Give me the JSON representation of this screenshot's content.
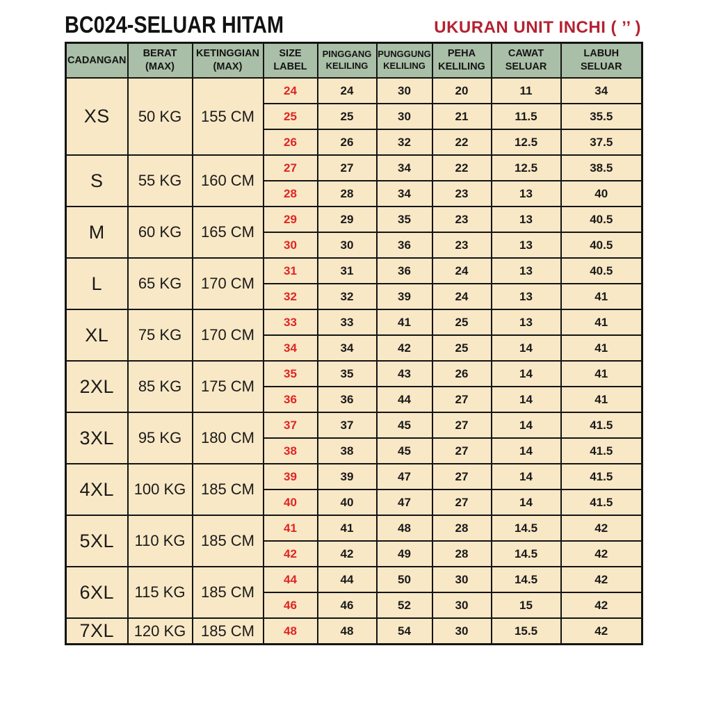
{
  "page": {
    "title": "BC024-SELUAR HITAM",
    "unit_label": "UKURAN UNIT INCHI ( ’’ )"
  },
  "colors": {
    "header_bg": "#a9bfa7",
    "cell_bg": "#f9e8c6",
    "title_color": "#121212",
    "unit_label_color": "#b52231",
    "size_label_color": "#e02424",
    "border_color": "#141414"
  },
  "table": {
    "headers": [
      {
        "lines": [
          "CADANGAN"
        ]
      },
      {
        "lines": [
          "BERAT",
          "(MAX)"
        ]
      },
      {
        "lines": [
          "KETINGGIAN",
          "(MAX)"
        ]
      },
      {
        "lines": [
          "SIZE",
          "LABEL"
        ]
      },
      {
        "lines": [
          "PINGGANG",
          "KELILING"
        ]
      },
      {
        "lines": [
          "PUNGGUNG",
          "KELILING"
        ]
      },
      {
        "lines": [
          "PEHA",
          "KELILING"
        ]
      },
      {
        "lines": [
          "CAWAT",
          "SELUAR"
        ]
      },
      {
        "lines": [
          "LABUH",
          "SELUAR"
        ]
      }
    ],
    "groups": [
      {
        "size": "XS",
        "weight": "50 KG",
        "height": "155 CM",
        "rows": [
          {
            "label": "24",
            "pinggang": "24",
            "punggung": "30",
            "peha": "20",
            "cawat": "11",
            "labuh": "34"
          },
          {
            "label": "25",
            "pinggang": "25",
            "punggung": "30",
            "peha": "21",
            "cawat": "11.5",
            "labuh": "35.5"
          },
          {
            "label": "26",
            "pinggang": "26",
            "punggung": "32",
            "peha": "22",
            "cawat": "12.5",
            "labuh": "37.5"
          }
        ]
      },
      {
        "size": "S",
        "weight": "55 KG",
        "height": "160 CM",
        "rows": [
          {
            "label": "27",
            "pinggang": "27",
            "punggung": "34",
            "peha": "22",
            "cawat": "12.5",
            "labuh": "38.5"
          },
          {
            "label": "28",
            "pinggang": "28",
            "punggung": "34",
            "peha": "23",
            "cawat": "13",
            "labuh": "40"
          }
        ]
      },
      {
        "size": "M",
        "weight": "60 KG",
        "height": "165 CM",
        "rows": [
          {
            "label": "29",
            "pinggang": "29",
            "punggung": "35",
            "peha": "23",
            "cawat": "13",
            "labuh": "40.5"
          },
          {
            "label": "30",
            "pinggang": "30",
            "punggung": "36",
            "peha": "23",
            "cawat": "13",
            "labuh": "40.5"
          }
        ]
      },
      {
        "size": "L",
        "weight": "65 KG",
        "height": "170 CM",
        "rows": [
          {
            "label": "31",
            "pinggang": "31",
            "punggung": "36",
            "peha": "24",
            "cawat": "13",
            "labuh": "40.5"
          },
          {
            "label": "32",
            "pinggang": "32",
            "punggung": "39",
            "peha": "24",
            "cawat": "13",
            "labuh": "41"
          }
        ]
      },
      {
        "size": "XL",
        "weight": "75 KG",
        "height": "170 CM",
        "rows": [
          {
            "label": "33",
            "pinggang": "33",
            "punggung": "41",
            "peha": "25",
            "cawat": "13",
            "labuh": "41"
          },
          {
            "label": "34",
            "pinggang": "34",
            "punggung": "42",
            "peha": "25",
            "cawat": "14",
            "labuh": "41"
          }
        ]
      },
      {
        "size": "2XL",
        "weight": "85 KG",
        "height": "175 CM",
        "rows": [
          {
            "label": "35",
            "pinggang": "35",
            "punggung": "43",
            "peha": "26",
            "cawat": "14",
            "labuh": "41"
          },
          {
            "label": "36",
            "pinggang": "36",
            "punggung": "44",
            "peha": "27",
            "cawat": "14",
            "labuh": "41"
          }
        ]
      },
      {
        "size": "3XL",
        "weight": "95 KG",
        "height": "180 CM",
        "rows": [
          {
            "label": "37",
            "pinggang": "37",
            "punggung": "45",
            "peha": "27",
            "cawat": "14",
            "labuh": "41.5"
          },
          {
            "label": "38",
            "pinggang": "38",
            "punggung": "45",
            "peha": "27",
            "cawat": "14",
            "labuh": "41.5"
          }
        ]
      },
      {
        "size": "4XL",
        "weight": "100 KG",
        "height": "185 CM",
        "rows": [
          {
            "label": "39",
            "pinggang": "39",
            "punggung": "47",
            "peha": "27",
            "cawat": "14",
            "labuh": "41.5"
          },
          {
            "label": "40",
            "pinggang": "40",
            "punggung": "47",
            "peha": "27",
            "cawat": "14",
            "labuh": "41.5"
          }
        ]
      },
      {
        "size": "5XL",
        "weight": "110 KG",
        "height": "185 CM",
        "rows": [
          {
            "label": "41",
            "pinggang": "41",
            "punggung": "48",
            "peha": "28",
            "cawat": "14.5",
            "labuh": "42"
          },
          {
            "label": "42",
            "pinggang": "42",
            "punggung": "49",
            "peha": "28",
            "cawat": "14.5",
            "labuh": "42"
          }
        ]
      },
      {
        "size": "6XL",
        "weight": "115 KG",
        "height": "185 CM",
        "rows": [
          {
            "label": "44",
            "pinggang": "44",
            "punggung": "50",
            "peha": "30",
            "cawat": "14.5",
            "labuh": "42"
          },
          {
            "label": "46",
            "pinggang": "46",
            "punggung": "52",
            "peha": "30",
            "cawat": "15",
            "labuh": "42"
          }
        ]
      },
      {
        "size": "7XL",
        "weight": "120 KG",
        "height": "185 CM",
        "rows": [
          {
            "label": "48",
            "pinggang": "48",
            "punggung": "54",
            "peha": "30",
            "cawat": "15.5",
            "labuh": "42"
          }
        ]
      }
    ]
  }
}
